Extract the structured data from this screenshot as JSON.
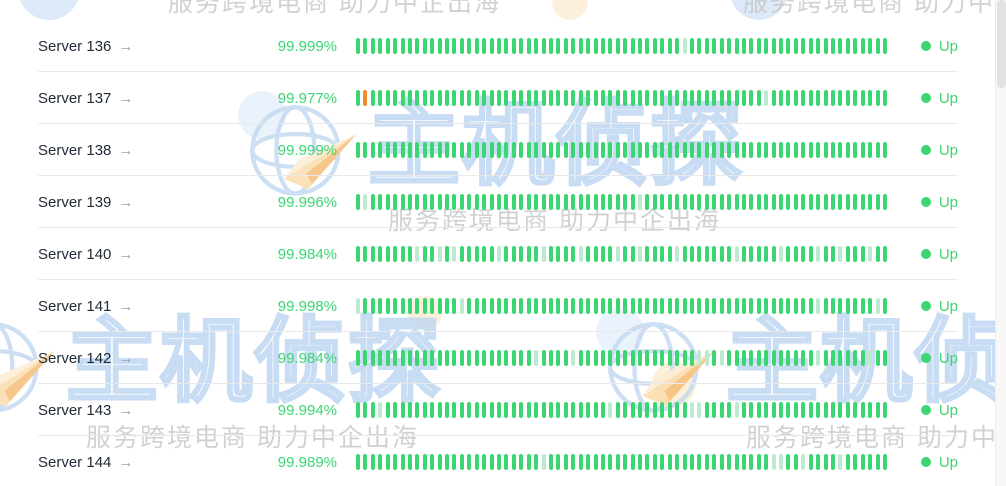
{
  "watermark": {
    "title": "主机侦探",
    "subtitle": "服务跨境电商 助力中企出海",
    "colors": {
      "outline_blue": "#c5daf1",
      "fill_blue": "#d8e7f7",
      "cream": "#fbe0b5",
      "subtitle_gray": "#c6c6c6"
    }
  },
  "status_colors": {
    "up_green": "#3bd671",
    "faded_green": "#bdebd2",
    "incident_orange": "#f08c2e"
  },
  "table": {
    "bar_count": 72,
    "status_label_up": "Up",
    "rows": [
      {
        "name": "Server 136",
        "arrow": "→",
        "pct": "99.999%",
        "status": "Up",
        "bars": "ggggggggggggggggggggggggggggggggggggggggggggfggggggggggggggggggggggggggg"
      },
      {
        "name": "Server 137",
        "arrow": "→",
        "pct": "99.977%",
        "status": "Up",
        "bars": "gogggggggggggggggggggggggggggggggggggggggggggggggggggggfgggggggggggggggg"
      },
      {
        "name": "Server 138",
        "arrow": "→",
        "pct": "99.999%",
        "status": "Up",
        "bars": "gggggggggggggggggggggggggggggggggggggggggggggggggggggggggggggggggggggggg"
      },
      {
        "name": "Server 139",
        "arrow": "→",
        "pct": "99.996%",
        "status": "Up",
        "bars": "gfggggggggggggggggggggggggggggggggggggfggggggggggggggggggggggggggggggggg"
      },
      {
        "name": "Server 140",
        "arrow": "→",
        "pct": "99.984%",
        "status": "Up",
        "bars": "ggggggggfggfgfgggggfgggggfggggfggggfggfggggfgggggggfgggggfggggfggfgggfgg"
      },
      {
        "name": "Server 141",
        "arrow": "→",
        "pct": "99.998%",
        "status": "Up",
        "bars": "fgggggggggggggfgggggggggggggggggggggggggggggggggggggggggggggggfgggggggfg"
      },
      {
        "name": "Server 142",
        "arrow": "→",
        "pct": "99.984%",
        "status": "Up",
        "bars": "ggggggggggggggggggggggggfggggfggggggggggggggggffgfggggggggggggfggggggfgg"
      },
      {
        "name": "Server 143",
        "arrow": "→",
        "pct": "99.994%",
        "status": "Up",
        "bars": "gggfggggggggggggggggggggggggggggggfggggggggggffggggfgggggggggggggggggggg"
      },
      {
        "name": "Server 144",
        "arrow": "→",
        "pct": "99.989%",
        "status": "Up",
        "bars": "gggggggggggggggggggggggggfggggggggggggggggggggggggggggggffggfggggfgggggg"
      }
    ]
  }
}
